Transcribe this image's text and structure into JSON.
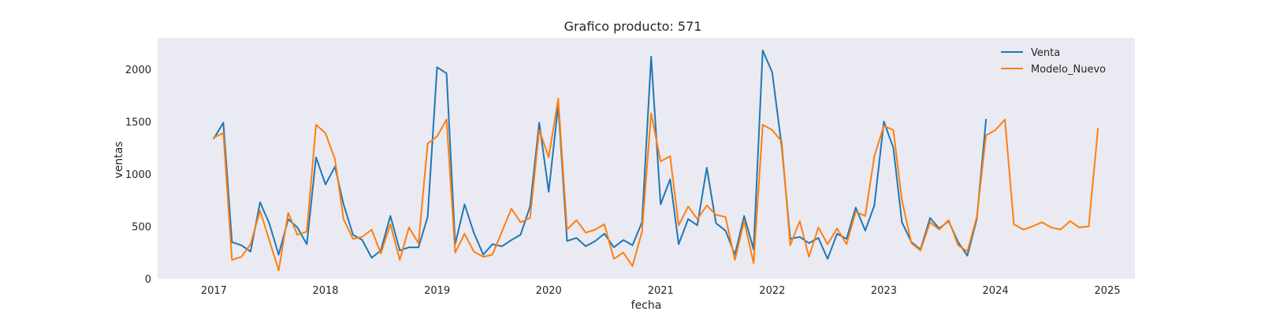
{
  "chart_data": {
    "type": "line",
    "title": "Grafico producto: 571",
    "xlabel": "fecha",
    "ylabel": "ventas",
    "xlim": [
      "2016-07-01",
      "2025-04-01"
    ],
    "ylim": [
      0,
      2300
    ],
    "x_ticks": [
      "2017",
      "2018",
      "2019",
      "2020",
      "2021",
      "2022",
      "2023",
      "2024",
      "2025"
    ],
    "y_ticks": [
      0,
      500,
      1000,
      1500,
      2000
    ],
    "grid": false,
    "legend": "top-right",
    "series": [
      {
        "name": "Venta",
        "color": "#1f77b4",
        "start": "2017-01",
        "values": [
          1340,
          1490,
          350,
          320,
          260,
          730,
          530,
          230,
          570,
          490,
          330,
          1160,
          900,
          1070,
          710,
          420,
          370,
          200,
          270,
          600,
          270,
          300,
          300,
          590,
          2020,
          1960,
          330,
          710,
          440,
          230,
          330,
          310,
          370,
          420,
          690,
          1490,
          830,
          1660,
          360,
          390,
          310,
          360,
          430,
          300,
          370,
          320,
          540,
          2120,
          710,
          950,
          330,
          570,
          510,
          1060,
          530,
          460,
          230,
          600,
          280,
          2180,
          1970,
          1260,
          380,
          400,
          340,
          390,
          190,
          430,
          380,
          680,
          460,
          700,
          1500,
          1250,
          540,
          350,
          280,
          580,
          480,
          550,
          350,
          220,
          570,
          1520
        ]
      },
      {
        "name": "Modelo_Nuevo",
        "color": "#ff7f0e",
        "start": "2017-01",
        "values": [
          1350,
          1390,
          180,
          210,
          330,
          650,
          370,
          80,
          630,
          420,
          450,
          1470,
          1390,
          1140,
          570,
          380,
          400,
          470,
          240,
          520,
          180,
          490,
          340,
          1290,
          1360,
          1520,
          250,
          430,
          260,
          210,
          230,
          450,
          670,
          540,
          580,
          1420,
          1160,
          1720,
          470,
          560,
          440,
          470,
          520,
          190,
          250,
          120,
          450,
          1580,
          1120,
          1170,
          510,
          690,
          570,
          700,
          610,
          590,
          180,
          550,
          150,
          1470,
          1420,
          1310,
          320,
          550,
          210,
          490,
          330,
          480,
          330,
          640,
          600,
          1170,
          1460,
          1420,
          750,
          340,
          270,
          540,
          470,
          560,
          320,
          260,
          590,
          1370,
          1420,
          1520,
          520,
          470,
          500,
          540,
          490,
          470,
          550,
          490,
          500,
          1430
        ]
      }
    ]
  }
}
